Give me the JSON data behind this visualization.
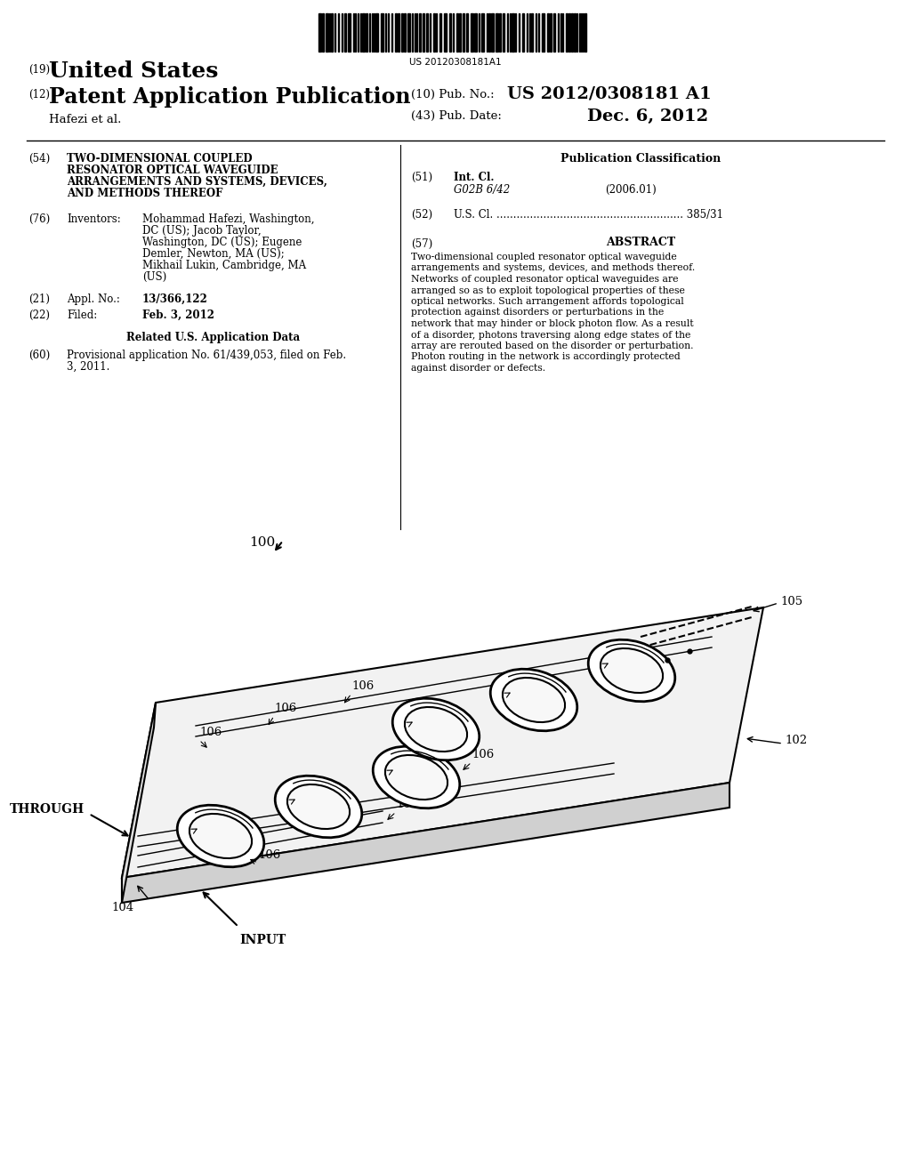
{
  "bg_color": "#ffffff",
  "barcode_text": "US 20120308181A1",
  "header_19": "(19)",
  "header_19_text": "United States",
  "header_12": "(12)",
  "header_12_text": "Patent Application Publication",
  "header_10_label": "(10) Pub. No.:",
  "header_10_value": "US 2012/0308181 A1",
  "header_43_label": "(43) Pub. Date:",
  "header_43_value": "Dec. 6, 2012",
  "author_line": "Hafezi et al.",
  "field_54_num": "(54)",
  "field_54_lines": [
    "TWO-DIMENSIONAL COUPLED",
    "RESONATOR OPTICAL WAVEGUIDE",
    "ARRANGEMENTS AND SYSTEMS, DEVICES,",
    "AND METHODS THEREOF"
  ],
  "pub_class_title": "Publication Classification",
  "field_51_num": "(51)",
  "field_51_label": "Int. Cl.",
  "field_51_class": "G02B 6/42",
  "field_51_year": "(2006.01)",
  "field_52_num": "(52)",
  "field_52_text": "U.S. Cl. ........................................................ 385/31",
  "field_57_num": "(57)",
  "field_57_title": "ABSTRACT",
  "abstract_text": "Two-dimensional coupled resonator optical waveguide arrangements and systems, devices, and methods thereof. Networks of coupled resonator optical waveguides are arranged so as to exploit topological properties of these optical networks. Such arrangement affords topological protection against disorders or perturbations in the network that may hinder or block photon flow. As a result of a disorder, photons traversing along edge states of the array are rerouted based on the disorder or perturbation. Photon routing in the network is accordingly protected against disorder or defects.",
  "field_76_num": "(76)",
  "field_76_label": "Inventors:",
  "field_76_lines": [
    {
      "text": "Mohammad Hafezi",
      "bold": true,
      "suffix": ", Washington,"
    },
    {
      "text": "DC (US); ",
      "bold": false,
      "suffix": "Jacob Taylor"
    },
    {
      "text": "Washington, DC (US); ",
      "bold": false,
      "suffix": "Eugene"
    },
    {
      "text": "Demler",
      "bold": true,
      "suffix": ", Newton, MA (US);"
    },
    {
      "text": "Mikhail Lukin",
      "bold": true,
      "suffix": ", Cambridge, MA"
    },
    {
      "text": "(US)",
      "bold": false,
      "suffix": ""
    }
  ],
  "field_76_text_lines": [
    "Mohammad Hafezi, Washington,",
    "DC (US); Jacob Taylor,",
    "Washington, DC (US); Eugene",
    "Demler, Newton, MA (US);",
    "Mikhail Lukin, Cambridge, MA",
    "(US)"
  ],
  "field_21_num": "(21)",
  "field_21_label": "Appl. No.:",
  "field_21_value": "13/366,122",
  "field_22_num": "(22)",
  "field_22_label": "Filed:",
  "field_22_value": "Feb. 3, 2012",
  "related_title": "Related U.S. Application Data",
  "field_60_num": "(60)",
  "field_60_lines": [
    "Provisional application No. 61/439,053, filed on Feb.",
    "3, 2011."
  ],
  "fig_label": "100",
  "label_100": "100",
  "label_102": "102",
  "label_104": "104",
  "label_105": "105",
  "label_106": "106",
  "label_through": "THROUGH",
  "label_input": "INPUT"
}
